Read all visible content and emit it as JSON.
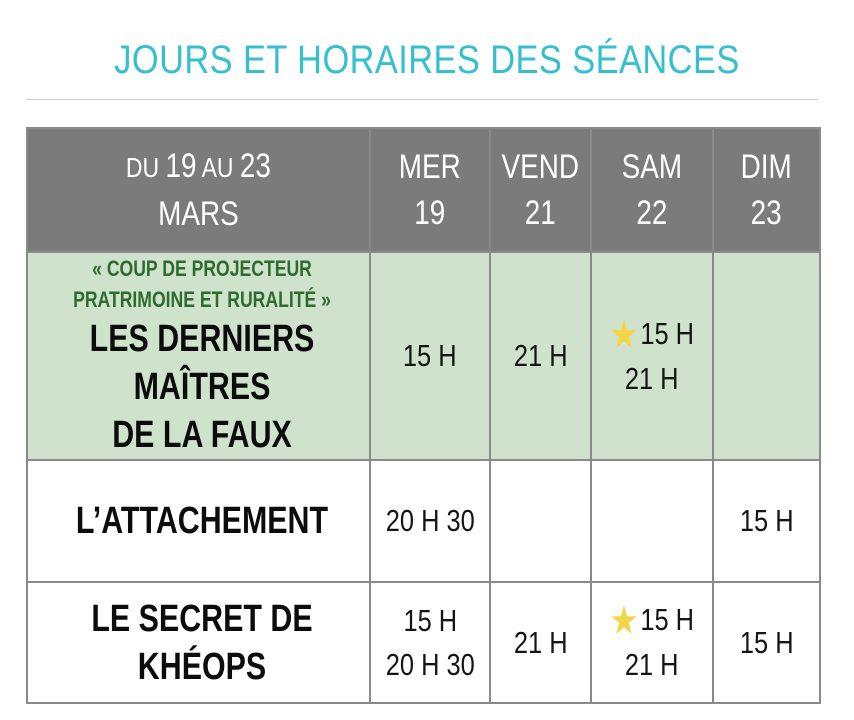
{
  "title": "JOURS ET HORAIRES DES SÉANCES",
  "header": {
    "range_line1_prefix": "DU ",
    "range_line1_num1": "19",
    "range_line1_mid": " AU ",
    "range_line1_num2": "23",
    "range_line2": "MARS",
    "days": [
      {
        "name": "MER",
        "num": "19"
      },
      {
        "name": "VEND",
        "num": "21"
      },
      {
        "name": "SAM",
        "num": "22"
      },
      {
        "name": "DIM",
        "num": "23"
      }
    ]
  },
  "highlight_color": "#cfe3cc",
  "accent_color": "#35bfcf",
  "star_icon": "star-icon",
  "films": [
    {
      "tag_line1": "« COUP DE PROJECTEUR",
      "tag_line2": "PRATRIMOINE ET RURALITÉ »",
      "title_line1": "LES DERNIERS MAÎTRES",
      "title_line2": "DE LA FAUX",
      "mer": "15 H",
      "vend": "21 H",
      "sam_line1": "15 H",
      "sam_line2": "21 H",
      "dim": ""
    },
    {
      "title": "L’ATTACHEMENT",
      "mer": "20 H 30",
      "vend": "",
      "sam": "",
      "dim": "15 H"
    },
    {
      "title": "LE SECRET DE KHÉOPS",
      "mer_line1": "15 H",
      "mer_line2": "20 H 30",
      "vend": "21 H",
      "sam_line1": "15 H",
      "sam_line2": "21 H",
      "dim": "15 H"
    }
  ]
}
